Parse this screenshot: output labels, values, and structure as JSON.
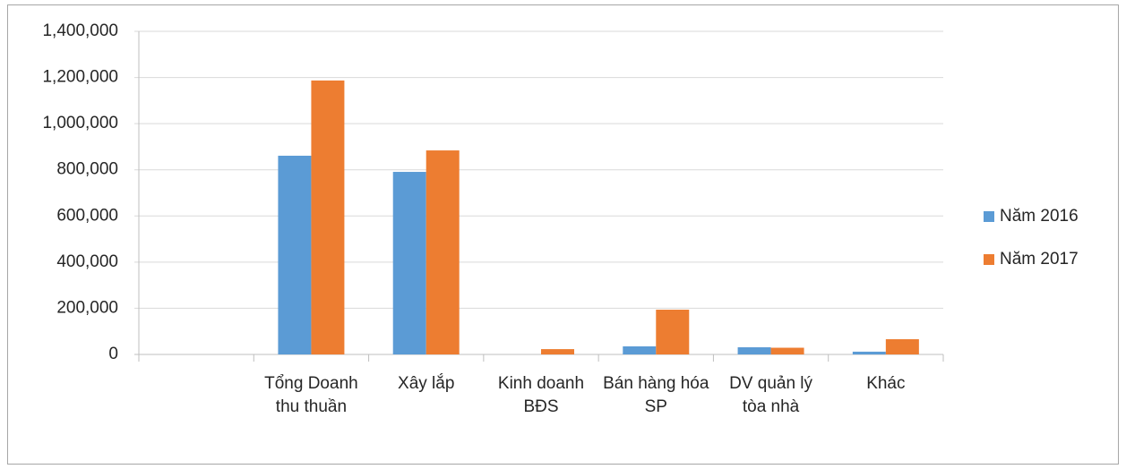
{
  "chart_data": {
    "type": "bar",
    "categories": [
      null,
      "Tổng Doanh thu thuần",
      "Xây lắp",
      "Kinh doanh BĐS",
      "Bán hàng hóa SP",
      "DV quản lý tòa nhà",
      "Khác"
    ],
    "series": [
      {
        "name": "Năm 2016",
        "color": "#5b9bd5",
        "values": [
          null,
          861000,
          791000,
          0,
          35000,
          31000,
          12000
        ]
      },
      {
        "name": "Năm 2017",
        "color": "#ed7d31",
        "values": [
          null,
          1187000,
          884000,
          23000,
          194000,
          29000,
          66000
        ]
      }
    ],
    "ylim": [
      0,
      1400000
    ],
    "yticks": [
      0,
      {
        "value": 200000,
        "label": "200,000"
      },
      {
        "value": 400000,
        "label": "400,000"
      },
      {
        "value": 600000,
        "label": "600,000"
      },
      {
        "value": 800000,
        "label": "800,000"
      },
      {
        "value": 1000000,
        "label": "1,000,000"
      },
      {
        "value": 1200000,
        "label": "1,200,000"
      },
      {
        "value": 1400000,
        "label": "1,400,000"
      }
    ],
    "grid": true,
    "legend": "right"
  }
}
